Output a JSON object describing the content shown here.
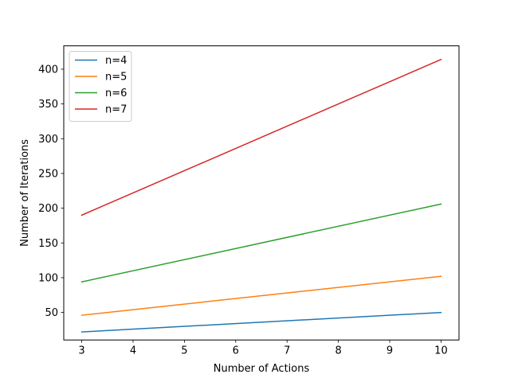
{
  "chart_data": {
    "type": "line",
    "xlabel": "Number of Actions",
    "ylabel": "Number of Iterations",
    "x": [
      3,
      10
    ],
    "xlim": [
      2.65,
      10.35
    ],
    "ylim": [
      10.4,
      433.6
    ],
    "xticks": [
      3,
      4,
      5,
      6,
      7,
      8,
      9,
      10
    ],
    "yticks": [
      50,
      100,
      150,
      200,
      250,
      300,
      350,
      400
    ],
    "grid": false,
    "legend_position": "top-left",
    "series": [
      {
        "name": "n=4",
        "color": "#1f77b4",
        "values": [
          22,
          50
        ]
      },
      {
        "name": "n=5",
        "color": "#ff7f0e",
        "values": [
          46,
          102
        ]
      },
      {
        "name": "n=6",
        "color": "#2ca02c",
        "values": [
          94,
          206
        ]
      },
      {
        "name": "n=7",
        "color": "#d62728",
        "values": [
          190,
          414
        ]
      }
    ]
  }
}
